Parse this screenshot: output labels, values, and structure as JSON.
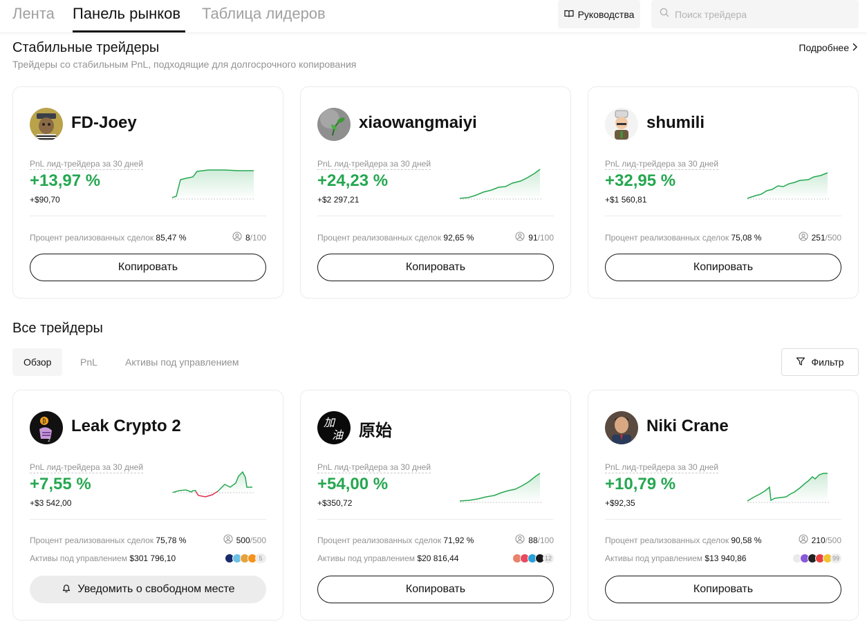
{
  "nav": {
    "tabs": [
      {
        "label": "Лента"
      },
      {
        "label": "Панель рынков"
      },
      {
        "label": "Таблица лидеров"
      }
    ],
    "guides_label": "Руководства",
    "search_placeholder": "Поиск трейдера"
  },
  "stable": {
    "title": "Стабильные трейдеры",
    "subtitle": "Трейдеры со стабильным PnL, подходящие для долгосрочного копирования",
    "more_label": "Подробнее",
    "cards": [
      {
        "name": "FD-Joey",
        "pnl_label": "PnL лид-трейдера за 30 дней",
        "pnl_pct": "+13,97 %",
        "pnl_abs": "+$90,70",
        "win_label": "Процент реализованных сделок",
        "win_rate": "85,47 %",
        "copiers": "8",
        "max_copiers": "/100",
        "button": "Копировать"
      },
      {
        "name": "xiaowangmaiyi",
        "pnl_label": "PnL лид-трейдера за 30 дней",
        "pnl_pct": "+24,23 %",
        "pnl_abs": "+$2 297,21",
        "win_label": "Процент реализованных сделок",
        "win_rate": "92,65 %",
        "copiers": "91",
        "max_copiers": "/100",
        "button": "Копировать"
      },
      {
        "name": "shumili",
        "pnl_label": "PnL лид-трейдера за 30 дней",
        "pnl_pct": "+32,95 %",
        "pnl_abs": "+$1 560,81",
        "win_label": "Процент реализованных сделок",
        "win_rate": "75,08 %",
        "copiers": "251",
        "max_copiers": "/500",
        "button": "Копировать"
      }
    ]
  },
  "all": {
    "title": "Все трейдеры",
    "tabs": [
      {
        "label": "Обзор"
      },
      {
        "label": "PnL"
      },
      {
        "label": "Активы под управлением"
      }
    ],
    "filter_label": "Фильтр",
    "cards": [
      {
        "name": "Leak Crypto 2",
        "pnl_label": "PnL лид-трейдера за 30 дней",
        "pnl_pct": "+7,55 %",
        "pnl_abs": "+$3 542,00",
        "win_label": "Процент реализованных сделок",
        "win_rate": "75,78 %",
        "copiers": "500",
        "max_copiers": "/500",
        "aum_label": "Активы под управлением",
        "aum": "$301 796,10",
        "coins_more": "5",
        "button": "Уведомить о свободном месте"
      },
      {
        "name": "原始",
        "pnl_label": "PnL лид-трейдера за 30 дней",
        "pnl_pct": "+54,00 %",
        "pnl_abs": "+$350,72",
        "win_label": "Процент реализованных сделок",
        "win_rate": "71,92 %",
        "copiers": "88",
        "max_copiers": "/100",
        "aum_label": "Активы под управлением",
        "aum": "$20 816,44",
        "coins_more": "12",
        "button": "Копировать"
      },
      {
        "name": "Niki Crane",
        "pnl_label": "PnL лид-трейдера за 30 дней",
        "pnl_pct": "+10,79 %",
        "pnl_abs": "+$92,35",
        "win_label": "Процент реализованных сделок",
        "win_rate": "90,58 %",
        "copiers": "210",
        "max_copiers": "/500",
        "aum_label": "Активы под управлением",
        "aum": "$13 940,86",
        "coins_more": "99",
        "button": "Копировать"
      }
    ]
  },
  "colors": {
    "positive": "#25a750",
    "negative": "#e0294a",
    "text": "#121212",
    "muted": "#929292"
  }
}
